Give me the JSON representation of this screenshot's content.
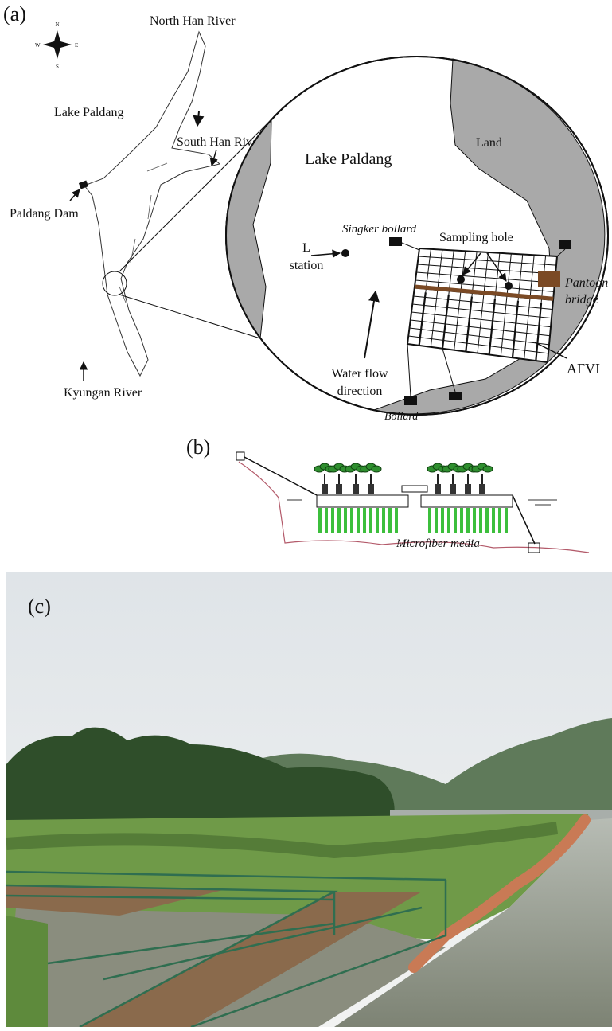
{
  "panel_a": {
    "label": "(a)",
    "compass": {
      "n": "N",
      "s": "S",
      "e": "E",
      "w": "W"
    },
    "map_labels": {
      "north_han_river": "North Han River",
      "lake_paldang": "Lake Paldang",
      "south_han_river": "South Han River",
      "paldang_dam": "Paldang Dam",
      "kyungan_river": "Kyungan River"
    },
    "inset_labels": {
      "lake_paldang": "Lake Paldang",
      "land": "Land",
      "singker_bollard": "Singker bollard",
      "sampling_hole": "Sampling hole",
      "l_station": [
        "L",
        "station"
      ],
      "pantoon_bridge": [
        "Pantoon",
        "bridge"
      ],
      "water_flow": [
        "Water flow",
        "direction"
      ],
      "afvi": "AFVI",
      "bollard": "Bollard"
    }
  },
  "panel_b": {
    "label": "(b)",
    "microfiber_media": "Microfiber media"
  },
  "panel_c": {
    "label": "(c)"
  }
}
